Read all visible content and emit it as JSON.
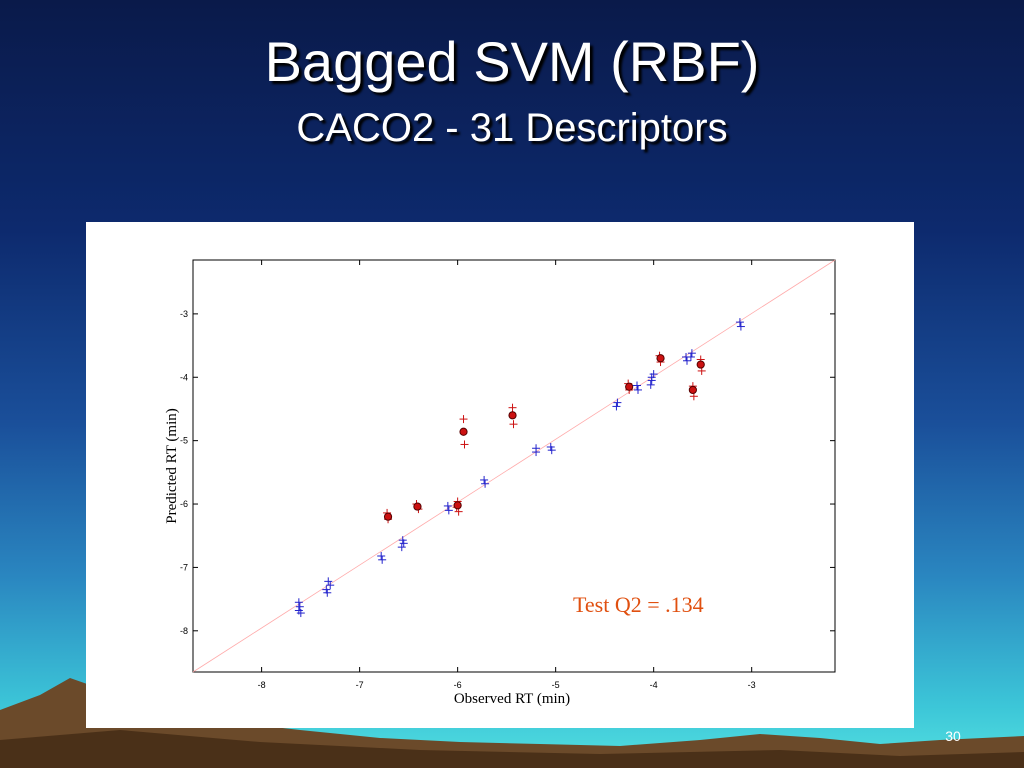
{
  "slide": {
    "title": "Bagged SVM (RBF)",
    "subtitle": "CACO2 - 31 Descriptors",
    "page_number": "30"
  },
  "colors": {
    "train": "#2222cc",
    "test": "#cc1111",
    "diagonal": "#ffaaaa",
    "annotation": "#e05010"
  },
  "chart_data": {
    "type": "scatter",
    "title": "",
    "xlabel": "Observed RT (min)",
    "ylabel": "Predicted RT (min)",
    "xlim": [
      -8.7,
      -2.15
    ],
    "ylim": [
      -8.65,
      -2.15
    ],
    "xticks": [
      -8,
      -7,
      -6,
      -5,
      -4,
      -3
    ],
    "yticks": [
      -8,
      -7,
      -6,
      -5,
      -4,
      -3
    ],
    "grid": false,
    "annotation": "Test  Q2 = .134",
    "diagonal_line": [
      [
        -8.7,
        -8.65
      ],
      [
        -2.15,
        -2.15
      ]
    ],
    "series": [
      {
        "role": "train",
        "marker": "plus",
        "points": [
          [
            -7.62,
            -7.55
          ],
          [
            -7.61,
            -7.62
          ],
          [
            -7.62,
            -7.68
          ],
          [
            -7.6,
            -7.72
          ],
          [
            -7.32,
            -7.22
          ],
          [
            -7.3,
            -7.28
          ],
          [
            -7.34,
            -7.35
          ],
          [
            -7.33,
            -7.4
          ],
          [
            -6.78,
            -6.82
          ],
          [
            -6.77,
            -6.88
          ],
          [
            -6.56,
            -6.57
          ],
          [
            -6.55,
            -6.62
          ],
          [
            -6.57,
            -6.68
          ],
          [
            -6.1,
            -6.03
          ],
          [
            -6.09,
            -6.1
          ],
          [
            -5.73,
            -5.62
          ],
          [
            -5.72,
            -5.68
          ],
          [
            -5.2,
            -5.12
          ],
          [
            -5.2,
            -5.18
          ],
          [
            -5.05,
            -5.1
          ],
          [
            -5.04,
            -5.15
          ],
          [
            -4.37,
            -4.4
          ],
          [
            -4.38,
            -4.46
          ],
          [
            -4.17,
            -4.13
          ],
          [
            -4.16,
            -4.2
          ],
          [
            -4.02,
            -4.05
          ],
          [
            -4.03,
            -4.12
          ],
          [
            -4.0,
            -3.95
          ],
          [
            -4.02,
            -4.0
          ],
          [
            -3.67,
            -3.68
          ],
          [
            -3.66,
            -3.74
          ],
          [
            -3.61,
            -3.62
          ],
          [
            -3.62,
            -3.68
          ],
          [
            -3.12,
            -3.13
          ],
          [
            -3.11,
            -3.2
          ]
        ]
      },
      {
        "role": "test",
        "marker": "plus",
        "points": [
          [
            -6.72,
            -6.14
          ],
          [
            -6.71,
            -6.24
          ],
          [
            -6.42,
            -6.0
          ],
          [
            -6.4,
            -6.08
          ],
          [
            -6.0,
            -5.96
          ],
          [
            -6.01,
            -6.05
          ],
          [
            -5.99,
            -6.12
          ],
          [
            -5.94,
            -4.66
          ],
          [
            -5.93,
            -5.06
          ],
          [
            -5.44,
            -4.48
          ],
          [
            -5.43,
            -4.74
          ],
          [
            -4.26,
            -4.1
          ],
          [
            -4.25,
            -4.2
          ],
          [
            -3.94,
            -3.66
          ],
          [
            -3.93,
            -3.76
          ],
          [
            -3.6,
            -4.14
          ],
          [
            -3.59,
            -4.3
          ],
          [
            -3.52,
            -3.72
          ],
          [
            -3.51,
            -3.9
          ]
        ]
      },
      {
        "role": "test-mean",
        "marker": "circle",
        "points": [
          [
            -6.71,
            -6.2
          ],
          [
            -6.41,
            -6.04
          ],
          [
            -6.0,
            -6.02
          ],
          [
            -5.94,
            -4.86
          ],
          [
            -5.44,
            -4.6
          ],
          [
            -4.25,
            -4.15
          ],
          [
            -3.93,
            -3.7
          ],
          [
            -3.6,
            -4.2
          ],
          [
            -3.52,
            -3.8
          ]
        ]
      }
    ]
  }
}
